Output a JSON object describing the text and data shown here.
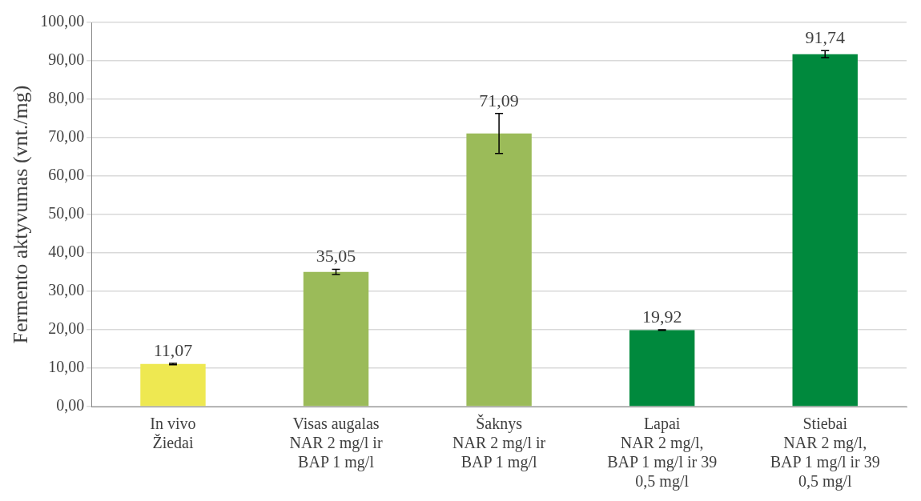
{
  "chart_data": {
    "type": "bar",
    "ylabel": "Fermento aktyvumas (vnt./mg)",
    "categories": [
      "In vivo\nŽiedai",
      "Visas augalas\nNAR 2 mg/l ir\nBAP 1 mg/l",
      "Šaknys\nNAR 2 mg/l ir\nBAP 1 mg/l",
      "Lapai\nNAR 2 mg/l,\nBAP 1 mg/l ir 39\n0,5 mg/l",
      "Stiebai\nNAR 2 mg/l,\nBAP 1 mg/l ir 39\n0,5 mg/l"
    ],
    "values": [
      11.07,
      35.05,
      71.09,
      19.92,
      91.74
    ],
    "colors": [
      "#eee851",
      "#9bbb59",
      "#9bbb59",
      "#00893d",
      "#00893d"
    ],
    "errors": [
      0.2,
      0.7,
      5.2,
      0.1,
      0.9
    ],
    "value_labels": [
      "11,07",
      "35,05",
      "71,09",
      "19,92",
      "91,74"
    ],
    "ylim": [
      0,
      100
    ],
    "yticks": [
      {
        "value": 0,
        "label": "0,00"
      },
      {
        "value": 10,
        "label": "10,00"
      },
      {
        "value": 20,
        "label": "20,00"
      },
      {
        "value": 30,
        "label": "30,00"
      },
      {
        "value": 40,
        "label": "40,00"
      },
      {
        "value": 50,
        "label": "50,00"
      },
      {
        "value": 60,
        "label": "60,00"
      },
      {
        "value": 70,
        "label": "70,00"
      },
      {
        "value": 80,
        "label": "80,00"
      },
      {
        "value": 90,
        "label": "90,00"
      },
      {
        "value": 100,
        "label": "100,00"
      }
    ],
    "grid": "y"
  }
}
